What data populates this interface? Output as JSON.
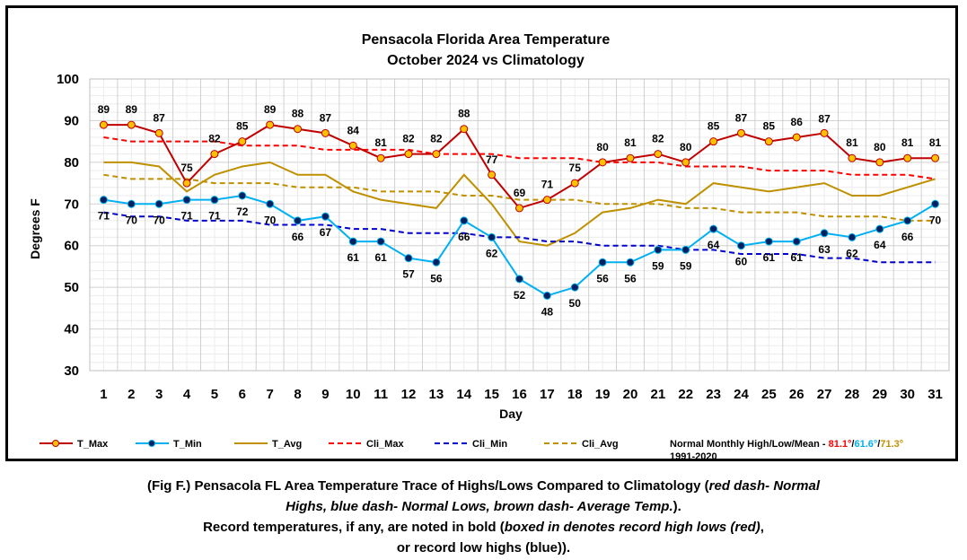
{
  "chart_data": {
    "type": "line",
    "title": [
      "Pensacola Florida Area Temperature",
      "October 2024 vs Climatology"
    ],
    "xlabel": "Day",
    "ylabel": "Degrees F",
    "ylim": [
      30,
      100
    ],
    "yticks": [
      30,
      40,
      50,
      60,
      70,
      80,
      90,
      100
    ],
    "x": [
      1,
      2,
      3,
      4,
      5,
      6,
      7,
      8,
      9,
      10,
      11,
      12,
      13,
      14,
      15,
      16,
      17,
      18,
      19,
      20,
      21,
      22,
      23,
      24,
      25,
      26,
      27,
      28,
      29,
      30,
      31
    ],
    "grid": true,
    "legend_position": "bottom",
    "series": [
      {
        "name": "T_Max",
        "style": "solid-marker",
        "color": "#c00000",
        "marker_fill": "#ffc000",
        "values": [
          89,
          89,
          87,
          75,
          82,
          85,
          89,
          88,
          87,
          84,
          81,
          82,
          82,
          88,
          77,
          69,
          71,
          75,
          80,
          81,
          82,
          80,
          85,
          87,
          85,
          86,
          87,
          81,
          80,
          81,
          81
        ],
        "labels": [
          "89",
          "89",
          "87",
          "75",
          "82",
          "85",
          "89",
          "88",
          "87",
          "84",
          "81",
          "82",
          "82",
          "88",
          "77",
          "69",
          "71",
          "75",
          "80",
          "81",
          "82",
          "80",
          "85",
          "87",
          "85",
          "86",
          "87",
          "81",
          "80",
          "81",
          "81"
        ]
      },
      {
        "name": "T_Min",
        "style": "solid-marker",
        "color": "#00b0f0",
        "marker_fill": "#002060",
        "values": [
          71,
          70,
          70,
          71,
          71,
          72,
          70,
          66,
          67,
          61,
          61,
          57,
          56,
          66,
          62,
          52,
          48,
          50,
          56,
          56,
          59,
          59,
          64,
          60,
          61,
          61,
          63,
          62,
          64,
          66,
          70
        ],
        "labels": [
          "71",
          "70",
          "70",
          "71",
          "71",
          "72",
          "70",
          "66",
          "67",
          "61",
          "61",
          "57",
          "56",
          "66",
          "62",
          "52",
          "48",
          "50",
          "56",
          "56",
          "59",
          "59",
          "64",
          "60",
          "61",
          "61",
          "63",
          "62",
          "64",
          "66",
          "70"
        ]
      },
      {
        "name": "T_Avg",
        "style": "solid",
        "color": "#bf9000",
        "values": [
          80,
          80,
          79,
          73,
          77,
          79,
          80,
          77,
          77,
          73,
          71,
          70,
          69,
          77,
          70,
          61,
          60,
          63,
          68,
          69,
          71,
          70,
          75,
          74,
          73,
          74,
          75,
          72,
          72,
          74,
          76
        ]
      },
      {
        "name": "Cli_Max",
        "style": "dash",
        "color": "#ff0000",
        "values": [
          86,
          85,
          85,
          85,
          85,
          84,
          84,
          84,
          83,
          83,
          83,
          83,
          82,
          82,
          82,
          81,
          81,
          81,
          80,
          80,
          80,
          79,
          79,
          79,
          78,
          78,
          78,
          77,
          77,
          77,
          76
        ]
      },
      {
        "name": "Cli_Min",
        "style": "dash",
        "color": "#0000cc",
        "values": [
          68,
          67,
          67,
          66,
          66,
          66,
          65,
          65,
          65,
          64,
          64,
          63,
          63,
          63,
          62,
          62,
          61,
          61,
          60,
          60,
          60,
          59,
          59,
          58,
          58,
          58,
          57,
          57,
          56,
          56,
          56
        ]
      },
      {
        "name": "Cli_Avg",
        "style": "dash",
        "color": "#bf9000",
        "values": [
          77,
          76,
          76,
          76,
          75,
          75,
          75,
          74,
          74,
          74,
          73,
          73,
          73,
          72,
          72,
          71,
          71,
          71,
          70,
          70,
          70,
          69,
          69,
          68,
          68,
          68,
          67,
          67,
          67,
          66,
          66
        ]
      }
    ],
    "annotations": {
      "normals_label": "Normal Monthly High/Low/Mean - ",
      "normal_high": "81.1°",
      "normal_low": "61.6°",
      "normal_mean": "71.3°",
      "sep": "/",
      "period": "1991-2020",
      "record_day_index": 26,
      "record_color": "#ff0000"
    }
  },
  "caption": {
    "line1_a": "(Fig F.) Pensacola FL Area Temperature Trace of Highs/Lows Compared to Climatology (",
    "line1_b": "red dash- Normal",
    "line2_a": "Highs, blue dash- Normal Lows, brown dash- Average Temp.",
    "line2_b": ").",
    "line3_a": "Record temperatures, if any, are noted in bold (",
    "line3_b": "boxed in denotes record high lows (red)",
    "line3_c": ",",
    "line4": "or record low highs (blue))."
  }
}
